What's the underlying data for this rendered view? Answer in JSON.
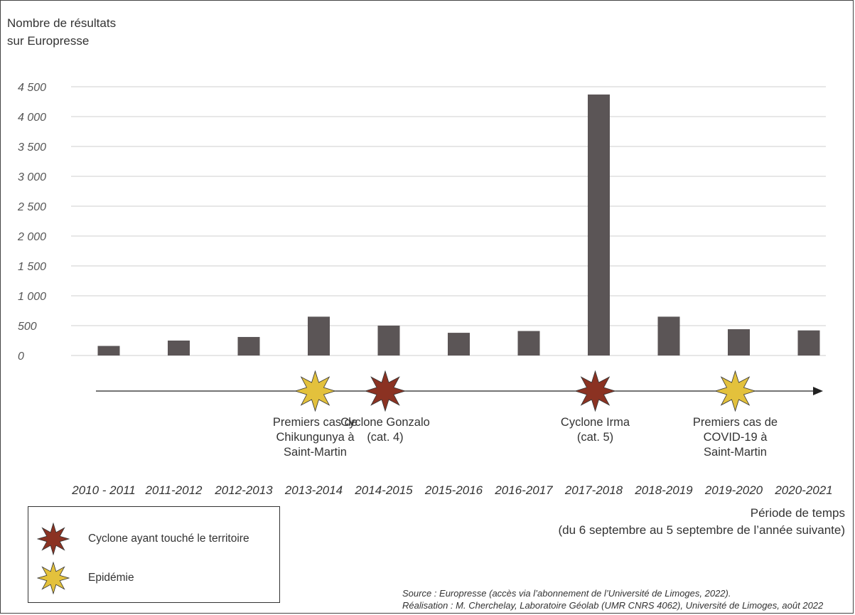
{
  "chart_data": {
    "type": "bar",
    "ylabel": "Nombre de résultats\nsur Europresse",
    "xlabel_line1": "Période de temps",
    "xlabel_line2": "(du 6 septembre au 5 septembre de l’année suivante)",
    "categories": [
      "2010 - 2011",
      "2011-2012",
      "2012-2013",
      "2013-2014",
      "2014-2015",
      "2015-2016",
      "2016-2017",
      "2017-2018",
      "2018-2019",
      "2019-2020",
      "2020-2021"
    ],
    "values": [
      160,
      250,
      310,
      650,
      500,
      380,
      410,
      4370,
      650,
      440,
      420
    ],
    "ylim": [
      0,
      4500
    ],
    "yticks": [
      0,
      500,
      1000,
      1500,
      2000,
      2500,
      3000,
      3500,
      4000,
      4500
    ],
    "ytick_labels": [
      "0",
      "500",
      "1 000",
      "1 500",
      "2 000",
      "2 500",
      "3 000",
      "3 500",
      "4 000",
      "4 500"
    ],
    "grid": true,
    "bar_color": "#5b5556"
  },
  "events": [
    {
      "category_index": 3,
      "kind": "epidemic",
      "label": "Premiers cas de\nChikungunya à\nSaint-Martin"
    },
    {
      "category_index": 4,
      "kind": "cyclone",
      "label": "Cyclone Gonzalo\n(cat. 4)"
    },
    {
      "category_index": 7,
      "kind": "cyclone",
      "label": "Cyclone Irma\n(cat. 5)"
    },
    {
      "category_index": 9,
      "kind": "epidemic",
      "label": "Premiers cas de\nCOVID-19  à\nSaint-Martin"
    }
  ],
  "legend": {
    "cyclone_label": "Cyclone ayant touché le territoire",
    "epidemic_label": "Epidémie",
    "cyclone_color": "#8b3222",
    "epidemic_color": "#e3c13c"
  },
  "source": {
    "line1": "Source : Europresse (accès via l’abonnement de l’Université de Limoges, 2022).",
    "line2": "Réalisation : M. Cherchelay, Laboratoire Géolab (UMR CNRS 4062), Université de Limoges, août 2022"
  }
}
